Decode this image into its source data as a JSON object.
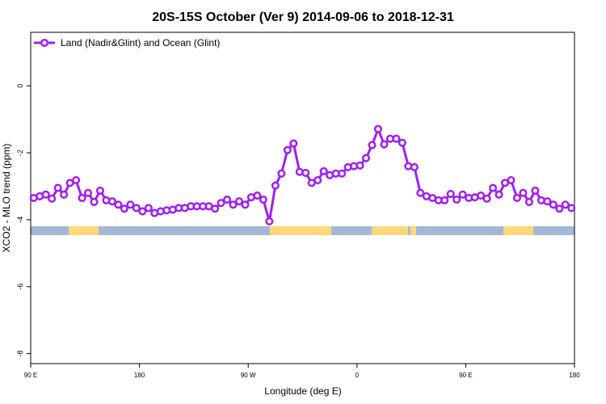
{
  "chart_data": {
    "type": "line",
    "title": "20S-15S October (Ver 9)   2014-09-06 to 2018-12-31",
    "xlabel": "Longitude (deg E)",
    "ylabel": "XCO2 - MLO trend (ppm)",
    "xlim": [
      90,
      540
    ],
    "ylim": [
      -8.3,
      1.6
    ],
    "xticks": [
      {
        "value": 90,
        "label": "90 E"
      },
      {
        "value": 180,
        "label": "180"
      },
      {
        "value": 270,
        "label": "90 W"
      },
      {
        "value": 360,
        "label": "0"
      },
      {
        "value": 450,
        "label": "90 E"
      },
      {
        "value": 540,
        "label": "180"
      }
    ],
    "yticks": [
      0,
      -2,
      -4,
      -6,
      -8
    ],
    "legend": "top-left",
    "x": [
      92.5,
      97.5,
      102.5,
      107.5,
      112.5,
      117.5,
      122.5,
      127.5,
      132.5,
      137.5,
      142.5,
      147.5,
      152.5,
      157.5,
      162.5,
      167.5,
      172.5,
      177.5,
      182.5,
      187.5,
      192.5,
      197.5,
      202.5,
      207.5,
      212.5,
      217.5,
      222.5,
      227.5,
      232.5,
      237.5,
      242.5,
      247.5,
      252.5,
      257.5,
      262.5,
      267.5,
      272.5,
      277.5,
      282.5,
      287.5,
      292.5,
      297.5,
      302.5,
      307.5,
      312.5,
      317.5,
      322.5,
      327.5,
      332.5,
      337.5,
      342.5,
      347.5,
      352.5,
      357.5,
      362.5,
      367.5,
      372.5,
      377.5,
      382.5,
      387.5,
      392.5,
      397.5,
      402.5,
      407.5,
      412.5,
      417.5,
      422.5,
      427.5,
      432.5,
      437.5,
      442.5,
      447.5,
      452.5,
      457.5,
      462.5,
      467.5,
      472.5,
      477.5,
      482.5,
      487.5,
      492.5,
      497.5,
      502.5,
      507.5,
      512.5,
      517.5,
      522.5,
      527.5,
      532.5,
      537.5
    ],
    "series": [
      {
        "name": "Land (Nadir&Glint) and Ocean (Glint)",
        "color": "#a020f0",
        "values": [
          -3.35,
          -3.3,
          -3.25,
          -3.37,
          -3.05,
          -3.25,
          -2.9,
          -2.82,
          -3.35,
          -3.2,
          -3.47,
          -3.13,
          -3.42,
          -3.45,
          -3.55,
          -3.67,
          -3.55,
          -3.65,
          -3.75,
          -3.65,
          -3.8,
          -3.75,
          -3.72,
          -3.7,
          -3.65,
          -3.65,
          -3.6,
          -3.6,
          -3.6,
          -3.6,
          -3.67,
          -3.5,
          -3.4,
          -3.55,
          -3.45,
          -3.55,
          -3.33,
          -3.28,
          -3.4,
          -4.05,
          -2.98,
          -2.62,
          -1.92,
          -1.72,
          -2.57,
          -2.6,
          -2.9,
          -2.82,
          -2.55,
          -2.67,
          -2.62,
          -2.62,
          -2.43,
          -2.4,
          -2.38,
          -2.16,
          -1.77,
          -1.29,
          -1.75,
          -1.58,
          -1.58,
          -1.7,
          -2.4,
          -2.43,
          -3.2,
          -3.3,
          -3.35,
          -3.42,
          -3.42,
          -3.23,
          -3.4,
          -3.25,
          -3.35,
          -3.33,
          -3.28,
          -3.37,
          -3.05,
          -3.25,
          -2.9,
          -2.82,
          -3.35,
          -3.2,
          -3.47,
          -3.13,
          -3.42,
          -3.45,
          -3.55,
          -3.67,
          -3.55,
          -3.65
        ]
      }
    ]
  }
}
